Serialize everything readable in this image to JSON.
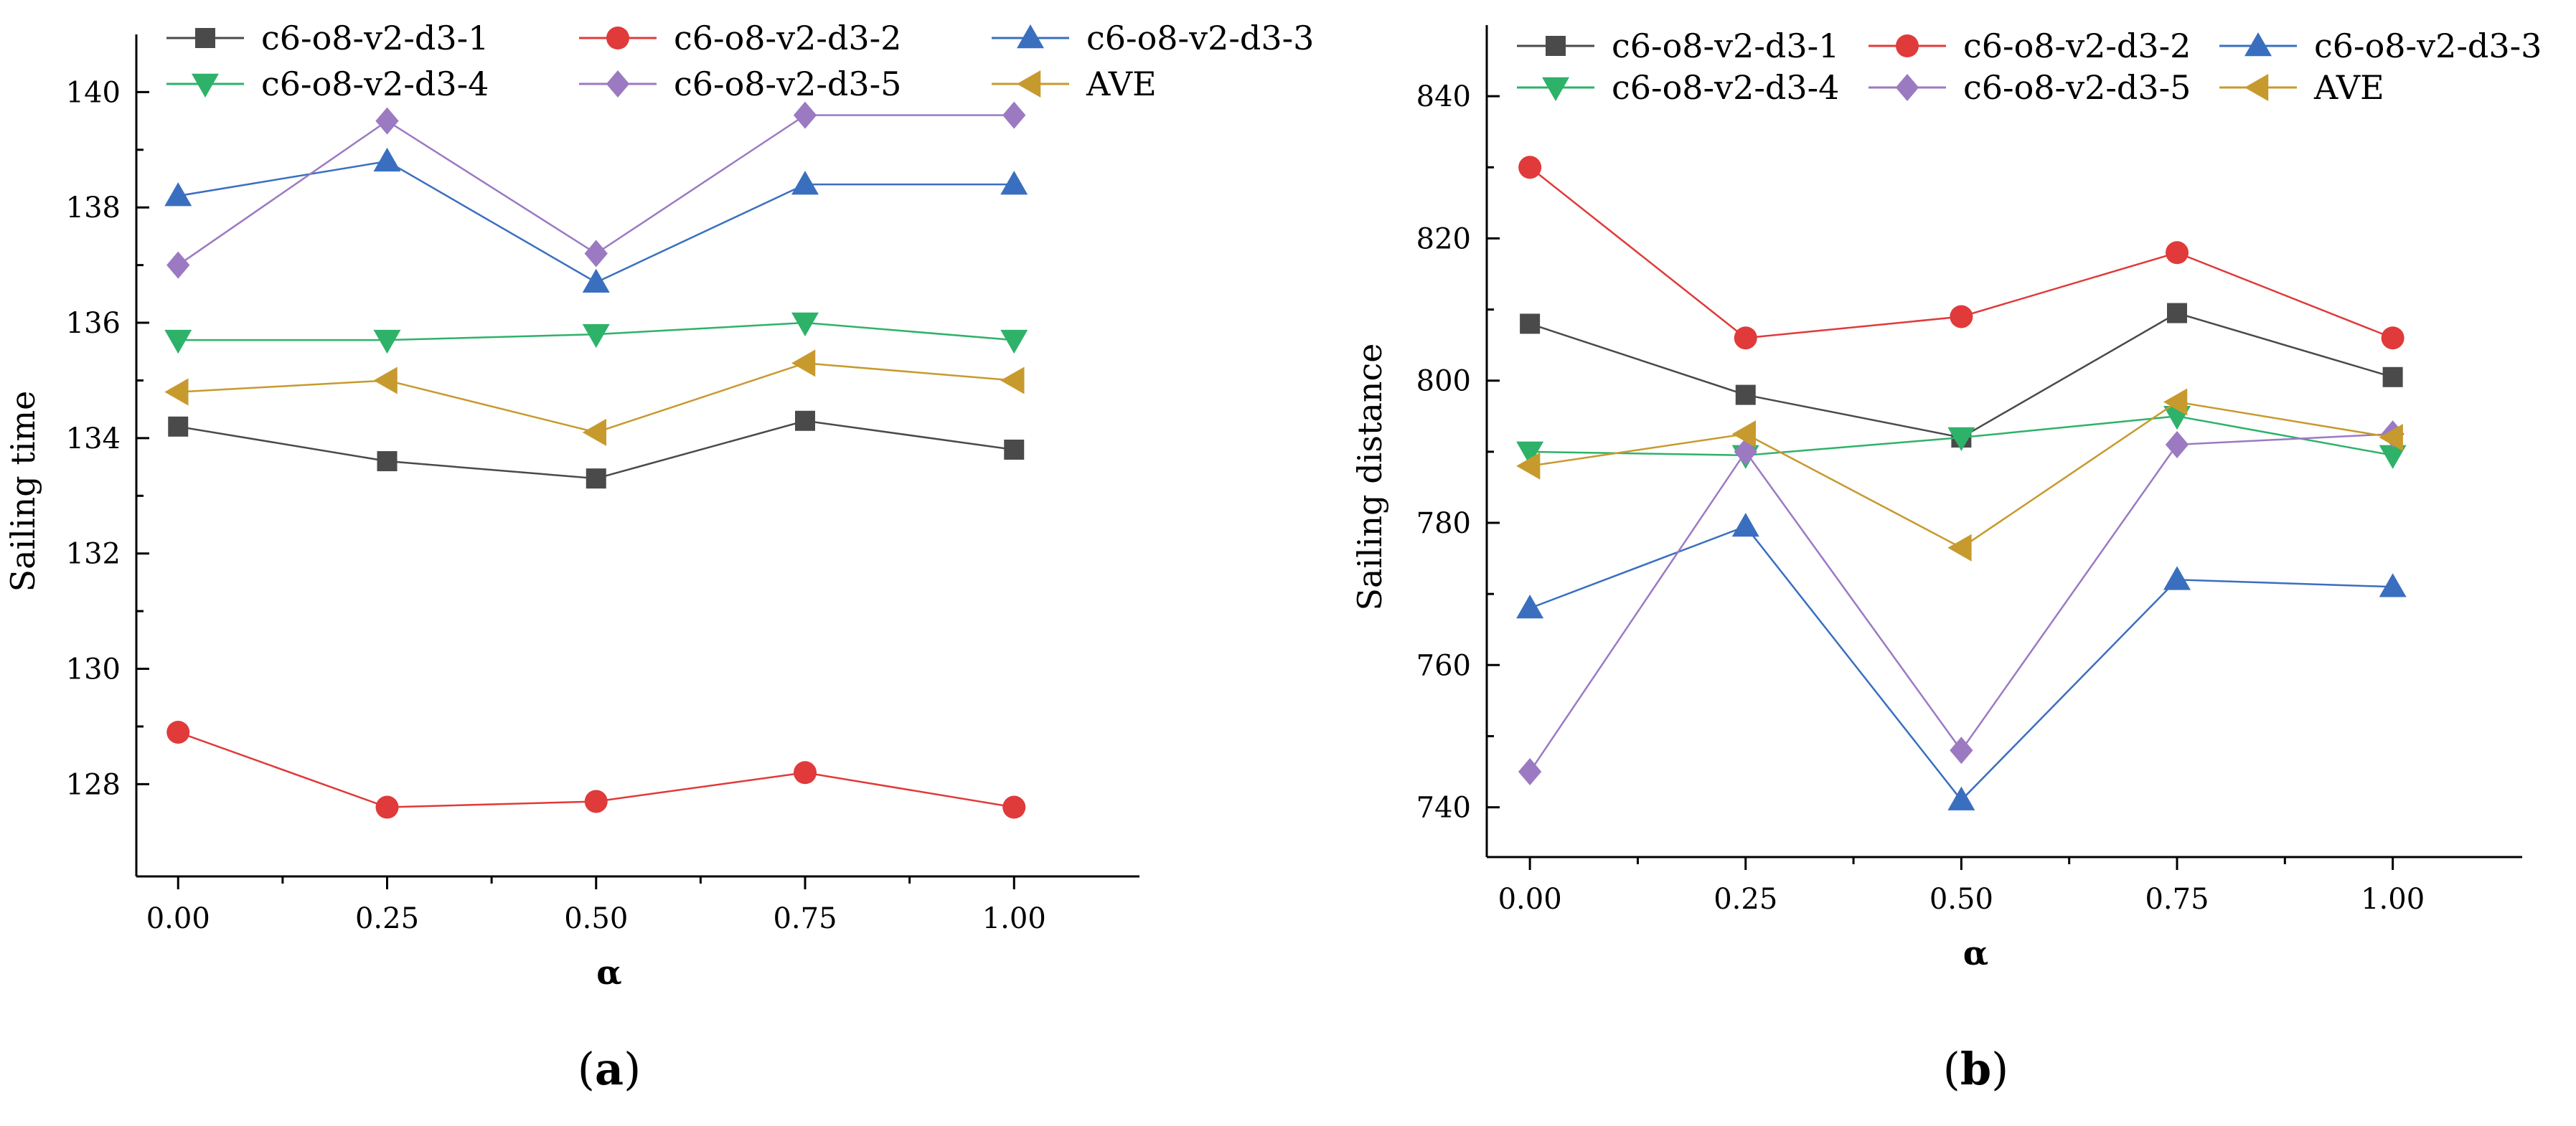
{
  "colors": {
    "c6-o8-v2-d3-1": "#4a4a4a",
    "c6-o8-v2-d3-2": "#e03a3a",
    "c6-o8-v2-d3-3": "#3a6fbf",
    "c6-o8-v2-d3-4": "#2eb26a",
    "c6-o8-v2-d3-5": "#9b7ac2",
    "AVE": "#c79a2e"
  },
  "chart_data": [
    {
      "type": "line",
      "panel_label": "a",
      "title": "",
      "xlabel": "α",
      "ylabel": "Sailing time",
      "x": [
        0.0,
        0.25,
        0.5,
        0.75,
        1.0
      ],
      "x_tick_labels": [
        "0.00",
        "0.25",
        "0.50",
        "0.75",
        "1.00"
      ],
      "xlim": [
        -0.05,
        1.15
      ],
      "ylim": [
        126.4,
        141.0
      ],
      "y_ticks": [
        128,
        130,
        132,
        134,
        136,
        138,
        140
      ],
      "y_tick_labels": [
        "128",
        "130",
        "132",
        "134",
        "136",
        "138",
        "140"
      ],
      "legend": "top",
      "grid": false,
      "series": [
        {
          "name": "c6-o8-v2-d3-1",
          "marker": "square",
          "values": [
            134.2,
            133.6,
            133.3,
            134.3,
            133.8
          ]
        },
        {
          "name": "c6-o8-v2-d3-2",
          "marker": "circle",
          "values": [
            128.9,
            127.6,
            127.7,
            128.2,
            127.6
          ]
        },
        {
          "name": "c6-o8-v2-d3-3",
          "marker": "triangle-up",
          "values": [
            138.2,
            138.8,
            136.7,
            138.4,
            138.4
          ]
        },
        {
          "name": "c6-o8-v2-d3-4",
          "marker": "triangle-down",
          "values": [
            135.7,
            135.7,
            135.8,
            136.0,
            135.7
          ]
        },
        {
          "name": "c6-o8-v2-d3-5",
          "marker": "diamond",
          "values": [
            137.0,
            139.5,
            137.2,
            139.6,
            139.6
          ]
        },
        {
          "name": "AVE",
          "marker": "triangle-left",
          "values": [
            134.8,
            135.0,
            134.1,
            135.3,
            135.0
          ]
        }
      ]
    },
    {
      "type": "line",
      "panel_label": "b",
      "title": "",
      "xlabel": "α",
      "ylabel": "Sailing distance",
      "x": [
        0.0,
        0.25,
        0.5,
        0.75,
        1.0
      ],
      "x_tick_labels": [
        "0.00",
        "0.25",
        "0.50",
        "0.75",
        "1.00"
      ],
      "xlim": [
        -0.05,
        1.15
      ],
      "ylim": [
        733.0,
        850.0
      ],
      "y_ticks": [
        740,
        760,
        780,
        800,
        820,
        840
      ],
      "y_tick_labels": [
        "740",
        "760",
        "780",
        "800",
        "820",
        "840"
      ],
      "legend": "top",
      "grid": false,
      "series": [
        {
          "name": "c6-o8-v2-d3-1",
          "marker": "square",
          "values": [
            808,
            798,
            792,
            809.5,
            800.5
          ]
        },
        {
          "name": "c6-o8-v2-d3-2",
          "marker": "circle",
          "values": [
            830,
            806,
            809,
            818,
            806
          ]
        },
        {
          "name": "c6-o8-v2-d3-3",
          "marker": "triangle-up",
          "values": [
            768,
            779.5,
            741,
            772,
            771
          ]
        },
        {
          "name": "c6-o8-v2-d3-4",
          "marker": "triangle-down",
          "values": [
            790,
            789.5,
            792,
            795,
            789.5
          ]
        },
        {
          "name": "c6-o8-v2-d3-5",
          "marker": "diamond",
          "values": [
            745,
            790,
            748,
            791,
            792.5
          ]
        },
        {
          "name": "AVE",
          "marker": "triangle-left",
          "values": [
            788,
            792.5,
            776.5,
            797,
            792
          ]
        }
      ]
    }
  ]
}
